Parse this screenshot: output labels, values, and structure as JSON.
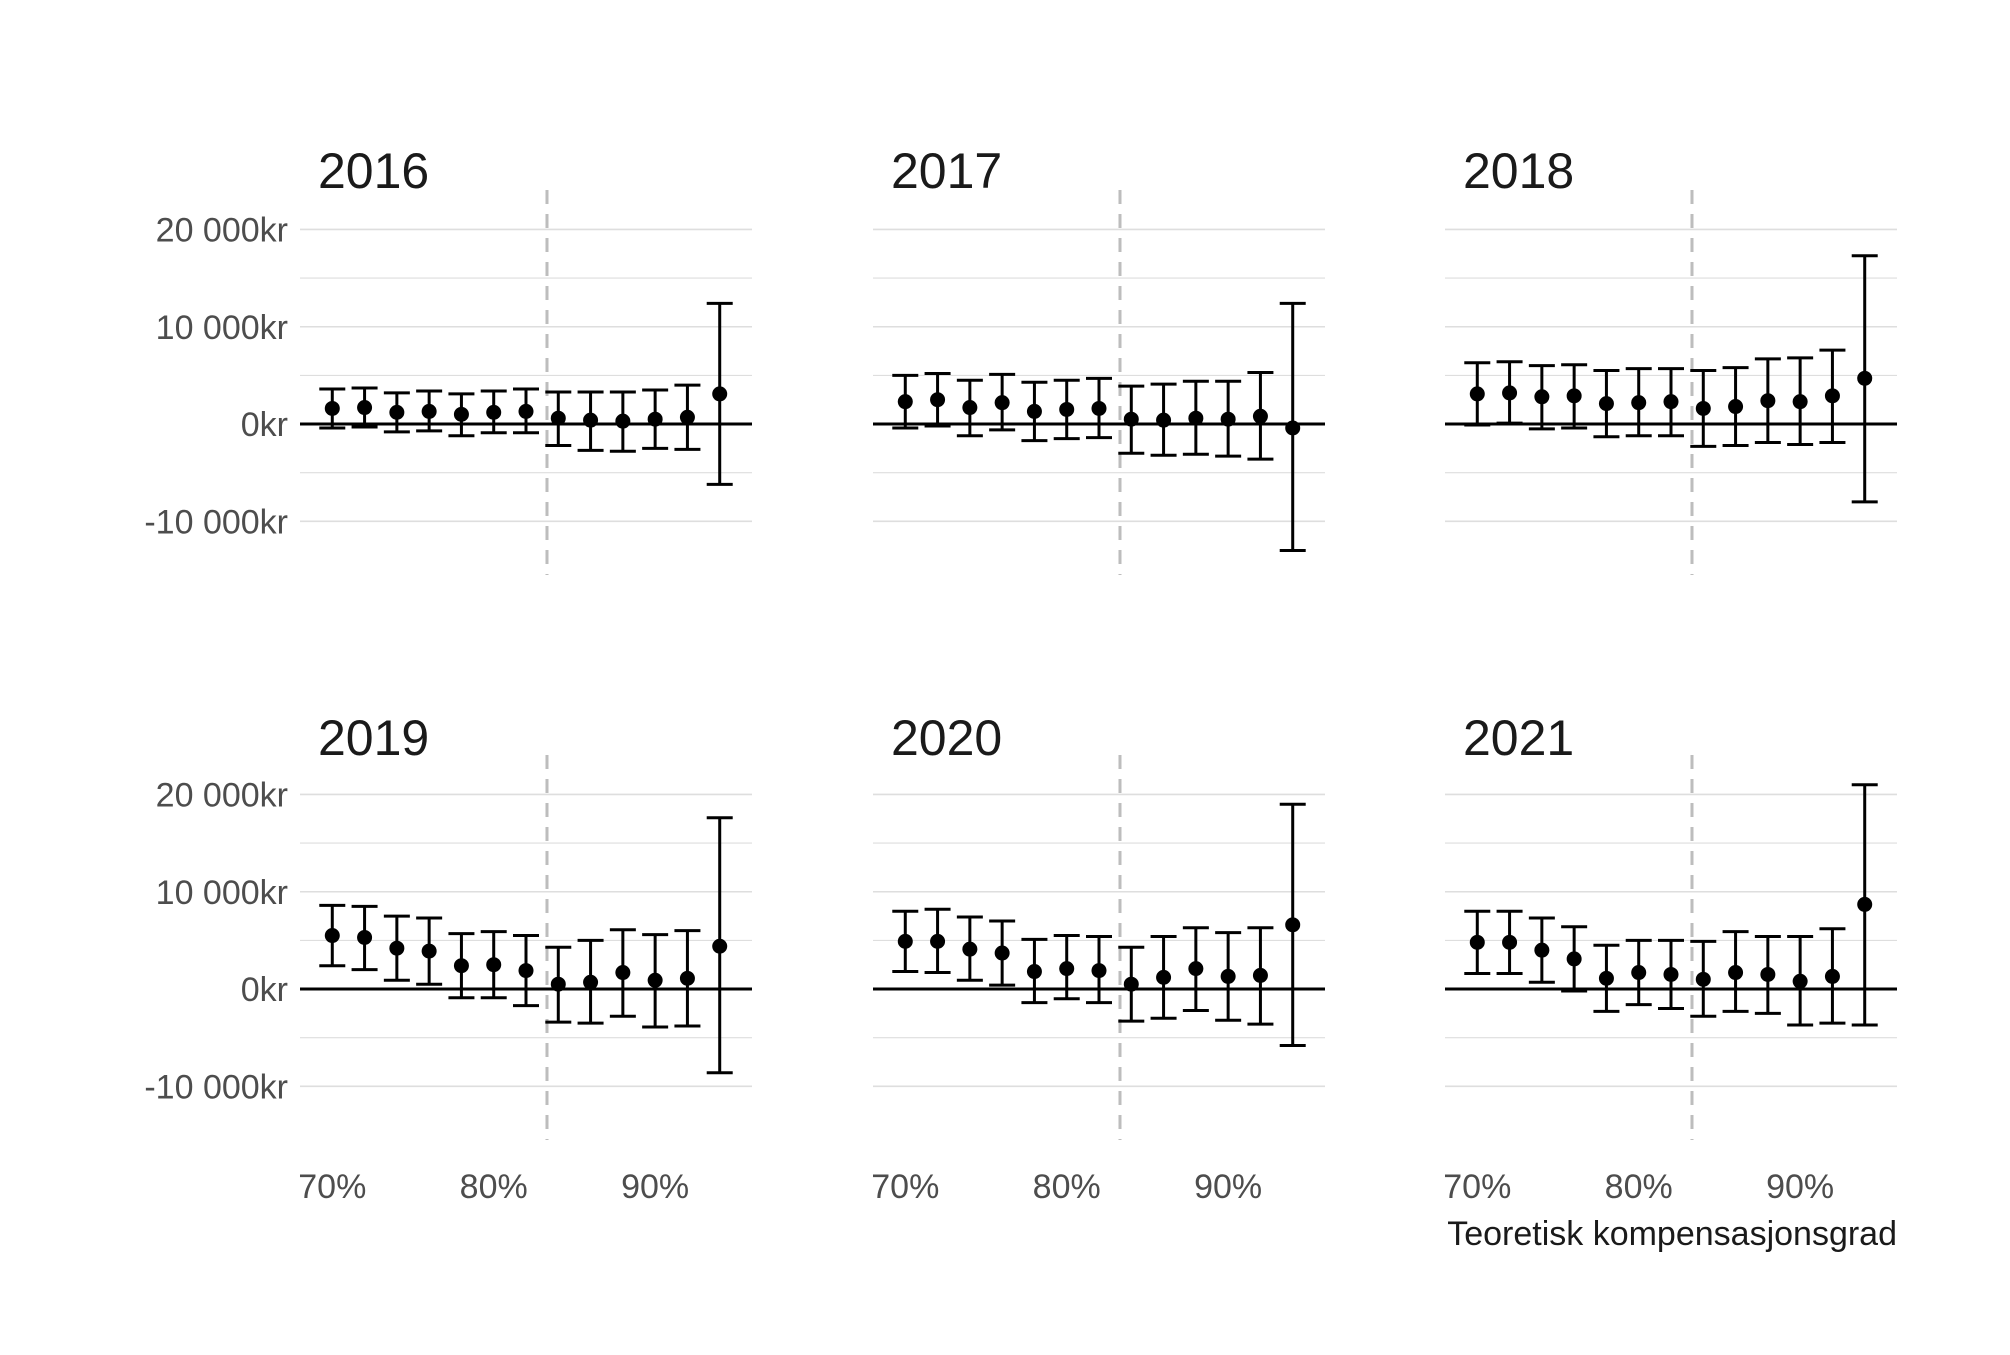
{
  "chart_data": {
    "type": "scatter",
    "subtype": "point-with-error-bars",
    "layout": "facet-grid-2x3",
    "xlabel": "Teoretisk kompensasjonsgrad",
    "ylabel": "",
    "x_ticks": [
      "70%",
      "80%",
      "90%"
    ],
    "x_tick_values": [
      0.7,
      0.8,
      0.9
    ],
    "y_ticks": [
      "20 000kr",
      "10 000kr",
      "0kr",
      "-10 000kr"
    ],
    "y_tick_values": [
      20000,
      10000,
      0,
      -10000
    ],
    "xlim": [
      0.68,
      0.96
    ],
    "ylim": [
      -15000,
      22000
    ],
    "reference_hline": 0,
    "threshold_vline": 0.833,
    "grid": true,
    "x": [
      0.7,
      0.72,
      0.74,
      0.76,
      0.78,
      0.8,
      0.82,
      0.84,
      0.86,
      0.88,
      0.9,
      0.92,
      0.94
    ],
    "panels": [
      {
        "title": "2016",
        "y": [
          1600,
          1700,
          1200,
          1300,
          1000,
          1200,
          1300,
          600,
          400,
          300,
          500,
          700,
          3100
        ],
        "lower": [
          -400,
          -300,
          -800,
          -700,
          -1200,
          -900,
          -900,
          -2200,
          -2700,
          -2800,
          -2500,
          -2600,
          -6200
        ],
        "upper": [
          3600,
          3700,
          3200,
          3400,
          3100,
          3400,
          3600,
          3300,
          3300,
          3300,
          3500,
          4000,
          12400
        ]
      },
      {
        "title": "2017",
        "y": [
          2300,
          2500,
          1700,
          2200,
          1300,
          1500,
          1600,
          500,
          400,
          600,
          500,
          800,
          -400
        ],
        "lower": [
          -400,
          -200,
          -1200,
          -600,
          -1700,
          -1500,
          -1400,
          -3000,
          -3200,
          -3100,
          -3300,
          -3600,
          -13000
        ],
        "upper": [
          5000,
          5200,
          4500,
          5100,
          4300,
          4500,
          4700,
          3900,
          4100,
          4400,
          4400,
          5300,
          12400
        ]
      },
      {
        "title": "2018",
        "y": [
          3100,
          3200,
          2800,
          2900,
          2100,
          2200,
          2300,
          1600,
          1800,
          2400,
          2300,
          2900,
          4700
        ],
        "lower": [
          -100,
          100,
          -500,
          -400,
          -1300,
          -1200,
          -1200,
          -2300,
          -2200,
          -1900,
          -2100,
          -1900,
          -8000
        ],
        "upper": [
          6300,
          6400,
          6000,
          6100,
          5500,
          5700,
          5700,
          5500,
          5800,
          6700,
          6800,
          7600,
          17300
        ]
      },
      {
        "title": "2019",
        "y": [
          5500,
          5300,
          4200,
          3900,
          2400,
          2500,
          1900,
          500,
          700,
          1700,
          900,
          1100,
          4400
        ],
        "lower": [
          2400,
          2000,
          900,
          500,
          -900,
          -900,
          -1700,
          -3400,
          -3500,
          -2800,
          -3900,
          -3800,
          -8600
        ],
        "upper": [
          8600,
          8500,
          7500,
          7300,
          5700,
          5900,
          5500,
          4300,
          5000,
          6100,
          5600,
          6000,
          17600
        ]
      },
      {
        "title": "2020",
        "y": [
          4900,
          4900,
          4100,
          3700,
          1800,
          2100,
          1900,
          500,
          1200,
          2100,
          1300,
          1400,
          6600
        ],
        "lower": [
          1800,
          1700,
          900,
          400,
          -1400,
          -1000,
          -1400,
          -3300,
          -3000,
          -2200,
          -3200,
          -3600,
          -5800
        ],
        "upper": [
          8000,
          8200,
          7400,
          7000,
          5100,
          5500,
          5400,
          4300,
          5400,
          6300,
          5800,
          6300,
          19000
        ]
      },
      {
        "title": "2021",
        "y": [
          4800,
          4800,
          4000,
          3100,
          1100,
          1700,
          1500,
          1000,
          1700,
          1500,
          800,
          1300,
          8700
        ],
        "lower": [
          1600,
          1600,
          700,
          -200,
          -2300,
          -1600,
          -2000,
          -2800,
          -2300,
          -2500,
          -3700,
          -3500,
          -3700
        ],
        "upper": [
          8000,
          8000,
          7300,
          6400,
          4500,
          5000,
          5000,
          4900,
          5900,
          5400,
          5400,
          6200,
          21000
        ]
      }
    ]
  },
  "colors": {
    "point": "#000000",
    "errorbar": "#000000",
    "zero_line": "#000000",
    "grid": "#dedede",
    "threshold_line": "#bdbdbd",
    "tick_text": "#4d4d4d",
    "title_text": "#1a1a1a"
  }
}
